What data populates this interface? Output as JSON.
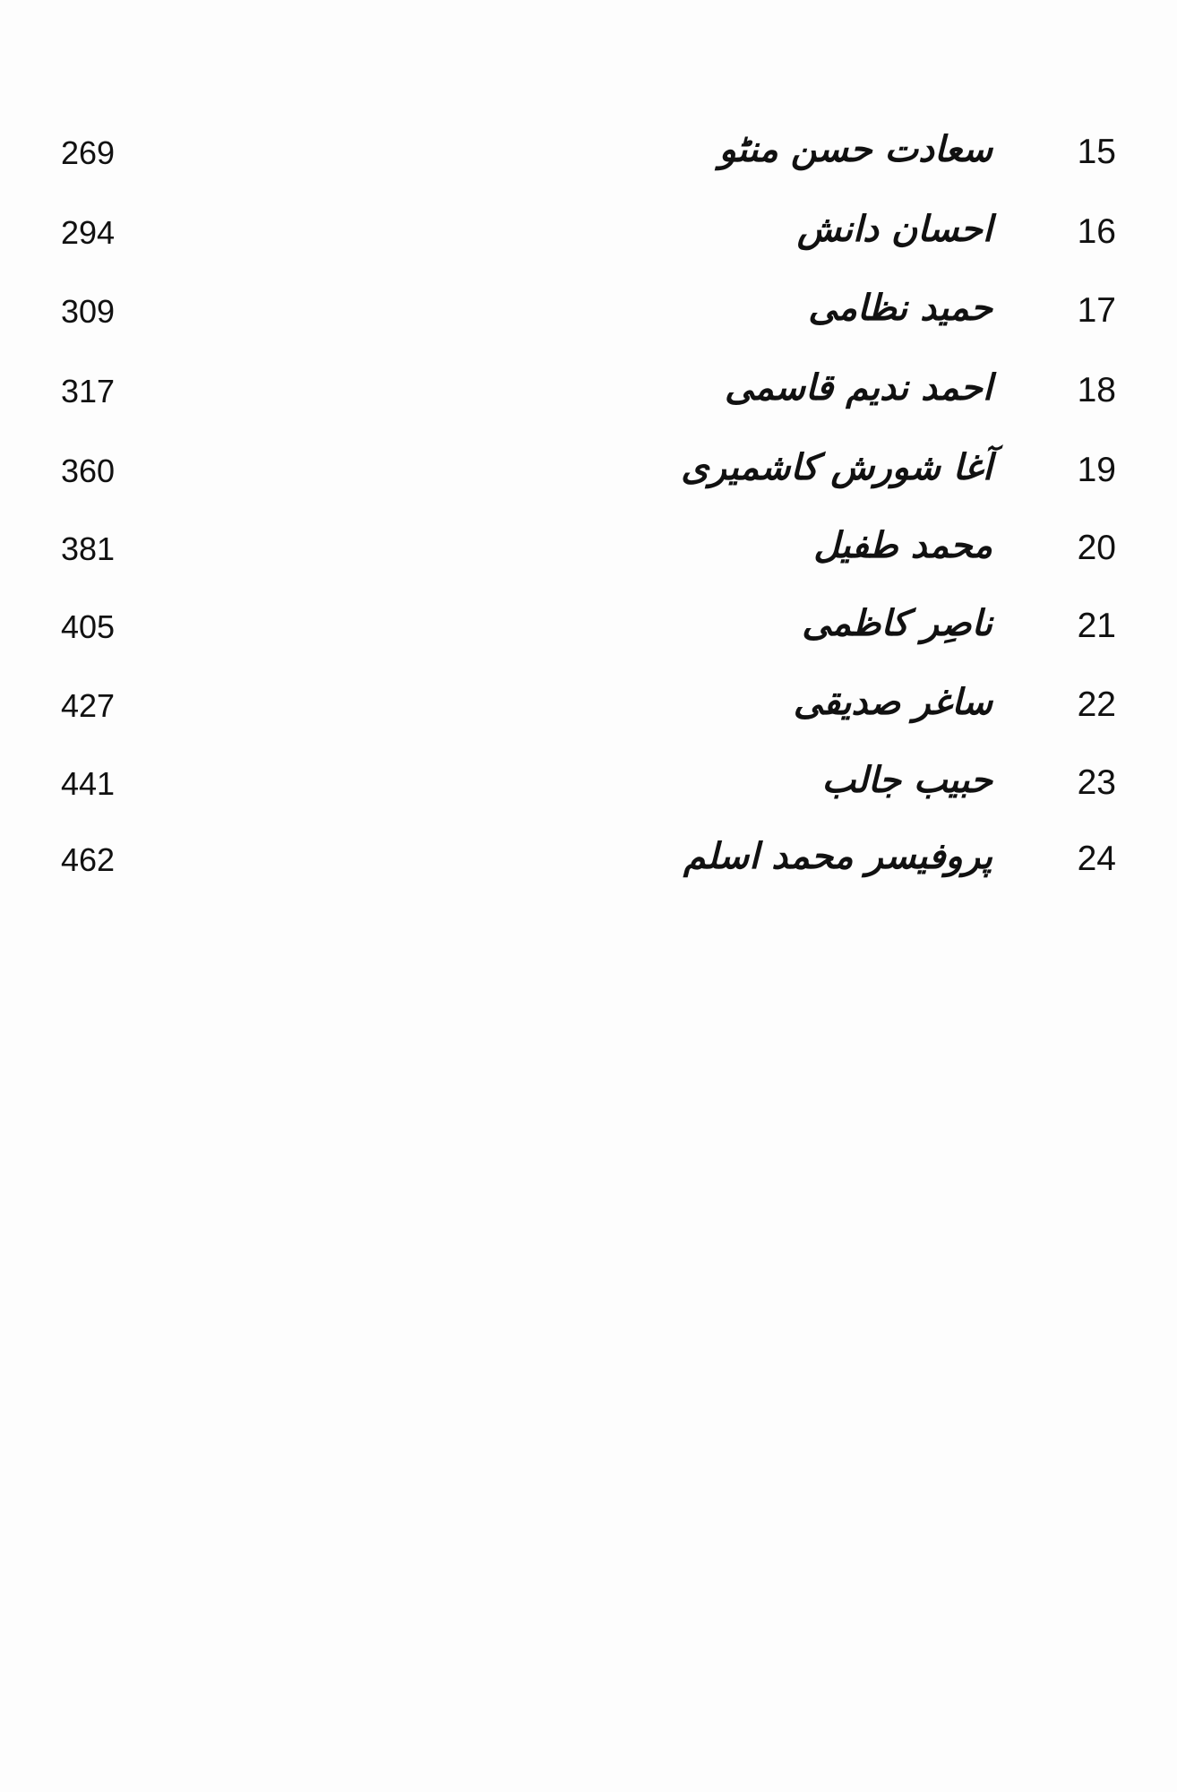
{
  "toc": {
    "entries": [
      {
        "number": "15",
        "title": "سعادت حسن منٹو",
        "page": "269"
      },
      {
        "number": "16",
        "title": "احسان دانش",
        "page": "294"
      },
      {
        "number": "17",
        "title": "حمید نظامی",
        "page": "309"
      },
      {
        "number": "18",
        "title": "احمد ندیم قاسمی",
        "page": "317"
      },
      {
        "number": "19",
        "title": "آغا شورش کاشمیری",
        "page": "360"
      },
      {
        "number": "20",
        "title": "محمد طفیل",
        "page": "381"
      },
      {
        "number": "21",
        "title": "ناصِر کاظمی",
        "page": "405"
      },
      {
        "number": "22",
        "title": "ساغر صدیقی",
        "page": "427"
      },
      {
        "number": "23",
        "title": "حبیب جالب",
        "page": "441"
      },
      {
        "number": "24",
        "title": "پروفیسر محمد اسلم",
        "page": "462"
      }
    ]
  }
}
